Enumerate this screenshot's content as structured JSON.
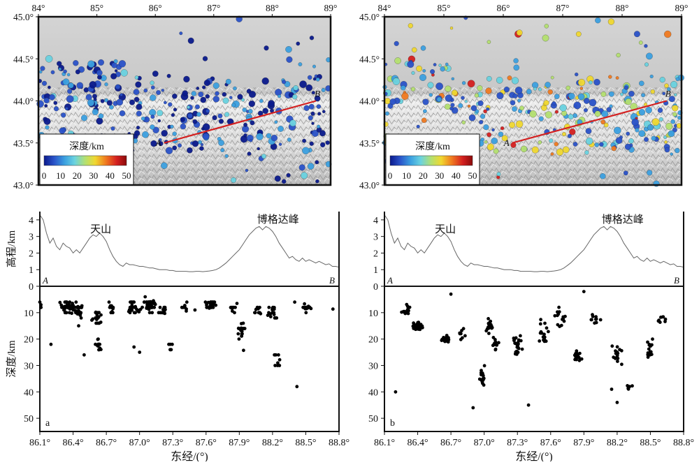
{
  "chart_data": [
    {
      "type": "map",
      "panel": "top-left",
      "x_ticks": [
        "84°",
        "85°",
        "86°",
        "87°",
        "88°",
        "89°"
      ],
      "y_ticks": [
        "45.0°",
        "44.5°",
        "44.0°",
        "43.5°",
        "43.0°"
      ],
      "xlim": [
        84,
        89
      ],
      "ylim": [
        43,
        45
      ],
      "profile": {
        "label_a": "A",
        "label_b": "B",
        "a": [
          86.15,
          43.5
        ],
        "b": [
          88.75,
          44.0
        ],
        "color": "#d42020"
      },
      "colorbar": {
        "title": "深度/km",
        "ticks": [
          "0",
          "10",
          "20",
          "30",
          "40",
          "50"
        ],
        "range": [
          0,
          50
        ]
      },
      "colormap": [
        "#0a1a8c",
        "#2a52c8",
        "#3ca0e0",
        "#6ad2e0",
        "#b4e070",
        "#f0d830",
        "#f07a20",
        "#d42020",
        "#8a0a0a"
      ],
      "depth_style": "shallow"
    },
    {
      "type": "map",
      "panel": "top-right",
      "x_ticks": [
        "84°",
        "85°",
        "86°",
        "87°",
        "88°",
        "89°"
      ],
      "y_ticks": [
        "45.0°",
        "44.5°",
        "44.0°",
        "43.5°",
        "43.0°"
      ],
      "xlim": [
        84,
        89
      ],
      "ylim": [
        43,
        45
      ],
      "profile": {
        "label_a": "A",
        "label_b": "B",
        "a": [
          86.15,
          43.5
        ],
        "b": [
          88.75,
          44.0
        ],
        "color": "#d42020"
      },
      "colorbar": {
        "title": "深度/km",
        "ticks": [
          "0",
          "10",
          "20",
          "30",
          "40",
          "50"
        ],
        "range": [
          0,
          50
        ]
      },
      "colormap": [
        "#0a1a8c",
        "#2a52c8",
        "#3ca0e0",
        "#6ad2e0",
        "#b4e070",
        "#f0d830",
        "#f07a20",
        "#d42020",
        "#8a0a0a"
      ],
      "depth_style": "relocated"
    },
    {
      "type": "line",
      "panel": "bottom-left-elevation",
      "ylabel": "高程/km",
      "y_ticks": [
        "0",
        "1",
        "2",
        "3",
        "4"
      ],
      "ylim": [
        0,
        4.5
      ],
      "xlim": [
        86.1,
        88.8
      ],
      "annotations": [
        "天山",
        "博格达峰"
      ],
      "end_labels": [
        "A",
        "B"
      ],
      "x": [
        86.1,
        86.13,
        86.16,
        86.19,
        86.22,
        86.25,
        86.28,
        86.31,
        86.34,
        86.37,
        86.4,
        86.43,
        86.46,
        86.49,
        86.52,
        86.55,
        86.58,
        86.61,
        86.64,
        86.67,
        86.7,
        86.73,
        86.76,
        86.79,
        86.82,
        86.85,
        86.88,
        86.91,
        86.94,
        86.97,
        87.0,
        87.03,
        87.06,
        87.09,
        87.12,
        87.15,
        87.18,
        87.21,
        87.24,
        87.27,
        87.3,
        87.33,
        87.36,
        87.39,
        87.42,
        87.45,
        87.48,
        87.51,
        87.54,
        87.57,
        87.6,
        87.63,
        87.66,
        87.69,
        87.72,
        87.75,
        87.78,
        87.81,
        87.84,
        87.87,
        87.9,
        87.93,
        87.96,
        87.99,
        88.02,
        88.05,
        88.08,
        88.11,
        88.14,
        88.17,
        88.2,
        88.23,
        88.26,
        88.29,
        88.32,
        88.35,
        88.38,
        88.41,
        88.44,
        88.47,
        88.5,
        88.53,
        88.56,
        88.59,
        88.62,
        88.65,
        88.68,
        88.71,
        88.74,
        88.77,
        88.8
      ],
      "values": [
        4.3,
        4.0,
        3.2,
        2.6,
        2.9,
        2.4,
        2.2,
        2.6,
        2.4,
        2.3,
        2.0,
        2.2,
        2.0,
        2.3,
        2.6,
        2.9,
        3.1,
        3.0,
        3.2,
        3.0,
        2.7,
        2.2,
        1.8,
        1.5,
        1.3,
        1.2,
        1.4,
        1.3,
        1.3,
        1.25,
        1.2,
        1.2,
        1.15,
        1.1,
        1.1,
        1.05,
        1.0,
        1.0,
        1.0,
        0.95,
        0.95,
        0.9,
        0.9,
        0.9,
        0.9,
        0.88,
        0.88,
        0.9,
        0.9,
        0.88,
        0.9,
        0.92,
        0.95,
        1.0,
        1.1,
        1.25,
        1.4,
        1.6,
        1.8,
        2.0,
        2.2,
        2.5,
        2.8,
        3.1,
        3.3,
        3.5,
        3.6,
        3.4,
        3.6,
        3.5,
        3.3,
        3.0,
        2.6,
        2.3,
        2.0,
        1.7,
        1.8,
        1.6,
        1.5,
        1.7,
        1.5,
        1.6,
        1.5,
        1.4,
        1.5,
        1.4,
        1.3,
        1.35,
        1.2,
        1.2,
        1.15
      ]
    },
    {
      "type": "scatter",
      "panel": "bottom-left-depth",
      "ylabel": "深度/km",
      "xlabel": "东经/(°)",
      "panel_label": "a",
      "x_ticks": [
        "86.1°",
        "86.4°",
        "86.7°",
        "87.0°",
        "87.3°",
        "87.6°",
        "87.9°",
        "88.2°",
        "88.5°",
        "88.8°"
      ],
      "y_ticks": [
        "10",
        "20",
        "30",
        "40",
        "50"
      ],
      "xlim": [
        86.1,
        88.8
      ],
      "ylim": [
        55,
        0
      ],
      "clusters": [
        [
          86.2,
          7,
          6,
          4,
          6
        ],
        [
          86.35,
          8,
          0.08,
          3,
          55
        ],
        [
          86.45,
          9,
          0.06,
          3,
          35
        ],
        [
          86.62,
          12,
          0.06,
          5,
          20
        ],
        [
          86.63,
          22,
          0.04,
          4,
          14
        ],
        [
          86.75,
          8,
          0.05,
          3,
          12
        ],
        [
          86.95,
          8,
          0.1,
          3,
          28
        ],
        [
          87.1,
          7,
          0.08,
          3,
          45
        ],
        [
          87.22,
          9,
          0.06,
          3,
          14
        ],
        [
          87.28,
          24,
          0.04,
          3,
          6
        ],
        [
          87.4,
          8,
          0.05,
          3,
          8
        ],
        [
          87.65,
          7,
          0.08,
          2,
          25
        ],
        [
          87.85,
          8,
          0.05,
          3,
          10
        ],
        [
          87.92,
          18,
          0.04,
          8,
          20
        ],
        [
          88.05,
          9,
          0.05,
          3,
          12
        ],
        [
          88.2,
          10,
          0.06,
          4,
          18
        ],
        [
          88.25,
          28,
          0.05,
          6,
          8
        ],
        [
          88.5,
          8,
          0.08,
          2,
          20
        ]
      ],
      "extra_points": [
        [
          86.1,
          6
        ],
        [
          86.2,
          22
        ],
        [
          86.5,
          26
        ],
        [
          86.45,
          15
        ],
        [
          88.42,
          38
        ],
        [
          87.0,
          25
        ],
        [
          86.95,
          23
        ],
        [
          87.5,
          9
        ]
      ]
    },
    {
      "type": "line",
      "panel": "bottom-right-elevation",
      "ylabel": "",
      "y_ticks": [
        "0",
        "1",
        "2",
        "3",
        "4"
      ],
      "ylim": [
        0,
        4.5
      ],
      "xlim": [
        86.1,
        88.8
      ],
      "annotations": [
        "天山",
        "博格达峰"
      ],
      "end_labels": [
        "A",
        "B"
      ],
      "x": [
        86.1,
        86.13,
        86.16,
        86.19,
        86.22,
        86.25,
        86.28,
        86.31,
        86.34,
        86.37,
        86.4,
        86.43,
        86.46,
        86.49,
        86.52,
        86.55,
        86.58,
        86.61,
        86.64,
        86.67,
        86.7,
        86.73,
        86.76,
        86.79,
        86.82,
        86.85,
        86.88,
        86.91,
        86.94,
        86.97,
        87.0,
        87.03,
        87.06,
        87.09,
        87.12,
        87.15,
        87.18,
        87.21,
        87.24,
        87.27,
        87.3,
        87.33,
        87.36,
        87.39,
        87.42,
        87.45,
        87.48,
        87.51,
        87.54,
        87.57,
        87.6,
        87.63,
        87.66,
        87.69,
        87.72,
        87.75,
        87.78,
        87.81,
        87.84,
        87.87,
        87.9,
        87.93,
        87.96,
        87.99,
        88.02,
        88.05,
        88.08,
        88.11,
        88.14,
        88.17,
        88.2,
        88.23,
        88.26,
        88.29,
        88.32,
        88.35,
        88.38,
        88.41,
        88.44,
        88.47,
        88.5,
        88.53,
        88.56,
        88.59,
        88.62,
        88.65,
        88.68,
        88.71,
        88.74,
        88.77,
        88.8
      ],
      "values": [
        4.3,
        4.0,
        3.2,
        2.6,
        2.9,
        2.4,
        2.2,
        2.6,
        2.4,
        2.3,
        2.0,
        2.2,
        2.0,
        2.3,
        2.6,
        2.9,
        3.1,
        3.0,
        3.2,
        3.0,
        2.7,
        2.2,
        1.8,
        1.5,
        1.3,
        1.2,
        1.4,
        1.3,
        1.3,
        1.25,
        1.2,
        1.2,
        1.15,
        1.1,
        1.1,
        1.05,
        1.0,
        1.0,
        1.0,
        0.95,
        0.95,
        0.9,
        0.9,
        0.9,
        0.9,
        0.88,
        0.88,
        0.9,
        0.9,
        0.88,
        0.9,
        0.92,
        0.95,
        1.0,
        1.1,
        1.25,
        1.4,
        1.6,
        1.8,
        2.0,
        2.2,
        2.5,
        2.8,
        3.1,
        3.3,
        3.5,
        3.6,
        3.4,
        3.6,
        3.5,
        3.3,
        3.0,
        2.6,
        2.3,
        2.0,
        1.7,
        1.8,
        1.6,
        1.5,
        1.7,
        1.5,
        1.6,
        1.5,
        1.4,
        1.5,
        1.4,
        1.3,
        1.35,
        1.2,
        1.2,
        1.15
      ]
    },
    {
      "type": "scatter",
      "panel": "bottom-right-depth",
      "ylabel": "",
      "xlabel": "东经/(°)",
      "panel_label": "b",
      "x_ticks": [
        "86.1°",
        "86.4°",
        "86.7°",
        "87.0°",
        "87.3°",
        "87.6°",
        "87.9°",
        "88.2°",
        "88.5°",
        "88.8°"
      ],
      "y_ticks": [
        "10",
        "20",
        "30",
        "40",
        "50"
      ],
      "xlim": [
        86.1,
        88.8
      ],
      "ylim": [
        55,
        0
      ],
      "clusters": [
        [
          86.3,
          9,
          0.05,
          3,
          14
        ],
        [
          86.4,
          15,
          0.06,
          2,
          55
        ],
        [
          86.65,
          20,
          0.04,
          1.5,
          28
        ],
        [
          86.8,
          18,
          0.05,
          3,
          8
        ],
        [
          86.98,
          34,
          0.03,
          5,
          18
        ],
        [
          87.05,
          15,
          0.05,
          4,
          20
        ],
        [
          87.1,
          22,
          0.06,
          4,
          12
        ],
        [
          87.3,
          22,
          0.06,
          6,
          25
        ],
        [
          87.55,
          18,
          0.07,
          6,
          16
        ],
        [
          87.7,
          12,
          0.08,
          5,
          14
        ],
        [
          87.85,
          26,
          0.06,
          3,
          18
        ],
        [
          88.0,
          13,
          0.08,
          4,
          10
        ],
        [
          88.2,
          26,
          0.06,
          5,
          18
        ],
        [
          88.3,
          38,
          0.05,
          4,
          6
        ],
        [
          88.5,
          24,
          0.06,
          6,
          16
        ],
        [
          88.6,
          13,
          0.06,
          3,
          8
        ]
      ],
      "extra_points": [
        [
          86.2,
          40
        ],
        [
          86.9,
          46
        ],
        [
          87.4,
          45
        ],
        [
          87.9,
          2
        ],
        [
          88.2,
          44
        ],
        [
          88.15,
          39
        ],
        [
          86.7,
          3
        ]
      ]
    }
  ]
}
